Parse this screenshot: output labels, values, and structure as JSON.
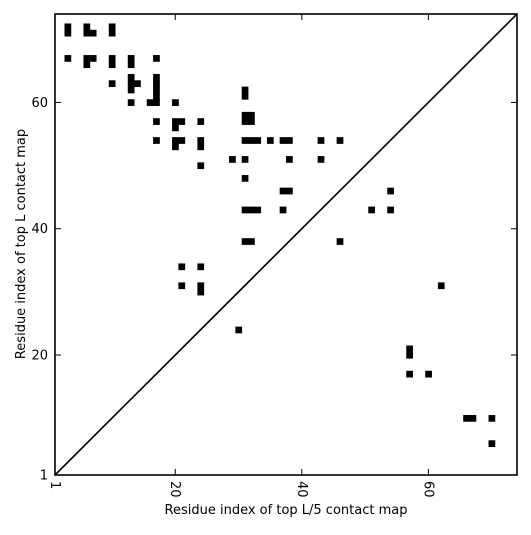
{
  "chart_data": {
    "type": "heatmap",
    "title": "",
    "xlabel": "Residue index of top L/5 contact map",
    "ylabel": "Residue index of top L contact map",
    "xlim": [
      1,
      74
    ],
    "ylim": [
      1,
      74
    ],
    "x_ticks": [
      {
        "value": 1,
        "label": "1"
      },
      {
        "value": 20,
        "label": "20"
      },
      {
        "value": 40,
        "label": "40"
      },
      {
        "value": 60,
        "label": "60"
      }
    ],
    "y_ticks": [
      {
        "value": 1,
        "label": "1"
      },
      {
        "value": 20,
        "label": "20"
      },
      {
        "value": 40,
        "label": "40"
      },
      {
        "value": 60,
        "label": "60"
      }
    ],
    "diagonal": true,
    "upper_triangle_contacts": [
      [
        3,
        72
      ],
      [
        3,
        71
      ],
      [
        3,
        67
      ],
      [
        6,
        72
      ],
      [
        6,
        71
      ],
      [
        7,
        71
      ],
      [
        6,
        67
      ],
      [
        7,
        67
      ],
      [
        6,
        66
      ],
      [
        10,
        72
      ],
      [
        10,
        71
      ],
      [
        10,
        67
      ],
      [
        10,
        66
      ],
      [
        10,
        63
      ],
      [
        13,
        67
      ],
      [
        13,
        66
      ],
      [
        13,
        64
      ],
      [
        14,
        63
      ],
      [
        13,
        63
      ],
      [
        13,
        62
      ],
      [
        13,
        60
      ],
      [
        17,
        67
      ],
      [
        17,
        64
      ],
      [
        17,
        63
      ],
      [
        17,
        62
      ],
      [
        17,
        61
      ],
      [
        16,
        60
      ],
      [
        17,
        60
      ],
      [
        17,
        57
      ],
      [
        17,
        54
      ],
      [
        20,
        60
      ],
      [
        20,
        57
      ],
      [
        21,
        57
      ],
      [
        20,
        56
      ],
      [
        20,
        54
      ],
      [
        21,
        54
      ],
      [
        20,
        53
      ],
      [
        24,
        57
      ],
      [
        24,
        54
      ],
      [
        24,
        53
      ],
      [
        24,
        50
      ],
      [
        29,
        51
      ],
      [
        31,
        62
      ],
      [
        31,
        61
      ],
      [
        31,
        58
      ],
      [
        32,
        58
      ],
      [
        31,
        57
      ],
      [
        32,
        57
      ],
      [
        31,
        54
      ],
      [
        32,
        54
      ],
      [
        33,
        54
      ],
      [
        35,
        54
      ],
      [
        37,
        54
      ],
      [
        38,
        54
      ],
      [
        31,
        51
      ],
      [
        38,
        51
      ],
      [
        31,
        48
      ],
      [
        37,
        46
      ],
      [
        38,
        46
      ],
      [
        31,
        43
      ],
      [
        32,
        43
      ],
      [
        33,
        43
      ],
      [
        37,
        43
      ],
      [
        31,
        38
      ],
      [
        32,
        38
      ],
      [
        43,
        54
      ],
      [
        46,
        54
      ],
      [
        43,
        51
      ],
      [
        46,
        38
      ],
      [
        51,
        43
      ],
      [
        54,
        46
      ],
      [
        54,
        43
      ]
    ],
    "lower_triangle_contacts": [
      [
        21,
        34
      ],
      [
        24,
        34
      ],
      [
        21,
        31
      ],
      [
        24,
        31
      ],
      [
        24,
        30
      ],
      [
        30,
        24
      ],
      [
        62,
        31
      ],
      [
        57,
        21
      ],
      [
        57,
        20
      ],
      [
        57,
        17
      ],
      [
        60,
        17
      ],
      [
        66,
        10
      ],
      [
        67,
        10
      ],
      [
        70,
        10
      ],
      [
        70,
        6
      ]
    ]
  }
}
